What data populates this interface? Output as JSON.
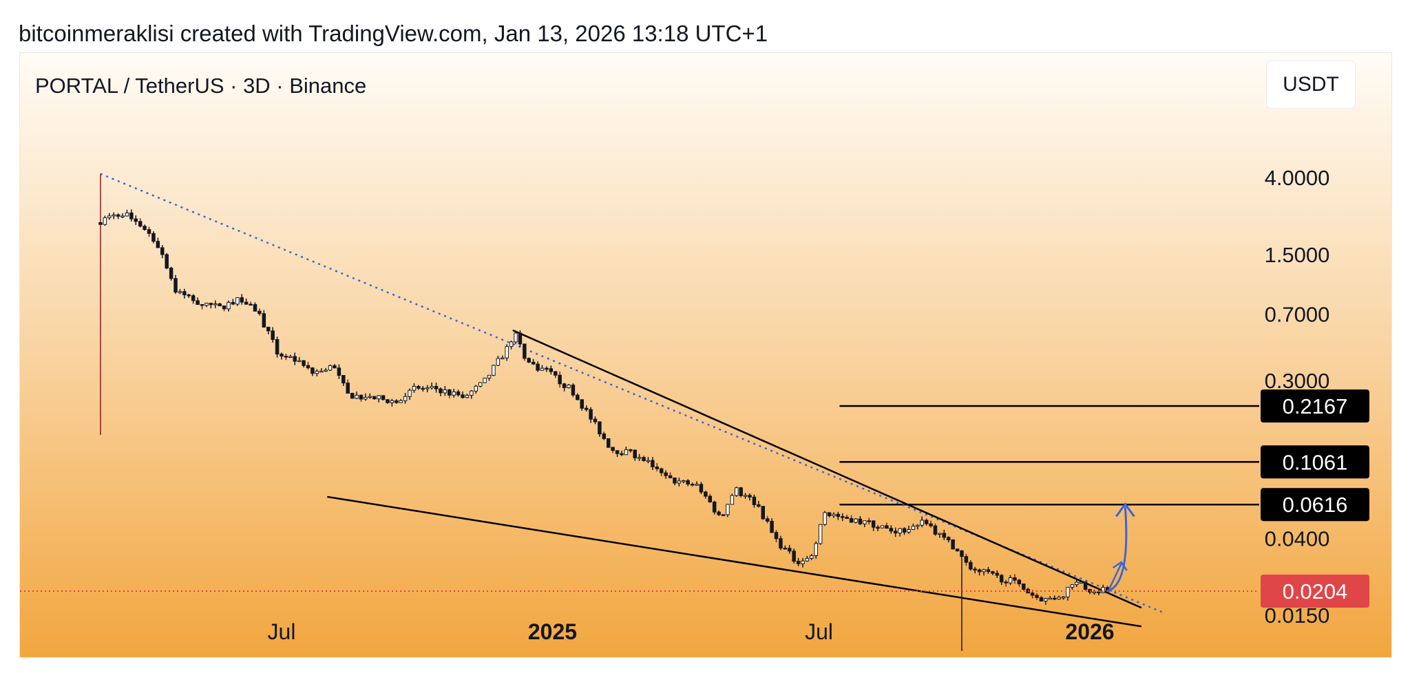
{
  "caption": "bitcoinmeraklisi created with TradingView.com, Jan 13, 2026 13:18 UTC+1",
  "header": {
    "symbol": "PORTAL / TetherUS · 3D · Binance",
    "currency": "USDT"
  },
  "colors": {
    "background_top": "#fffcf6",
    "background_bottom": "#f2a63f",
    "candle": "#131722",
    "bear_wick": "#8b1a1a",
    "dotted_trendline": "#3a64d8",
    "arrow": "#3a64d8",
    "current_price_line": "#e04040",
    "current_price_label": "#e04548",
    "level_label": "#000000"
  },
  "chart_data": {
    "type": "candlestick",
    "scale": "log",
    "ylim": [
      0.0085,
      5.0
    ],
    "x_tick_labels": [
      {
        "label": "Jul",
        "date": "2024-07-01",
        "bold": false
      },
      {
        "label": "2025",
        "date": "2025-01-01",
        "bold": true
      },
      {
        "label": "Jul",
        "date": "2025-07-01",
        "bold": false
      },
      {
        "label": "2026",
        "date": "2026-01-01",
        "bold": true
      }
    ],
    "y_tick_labels": [
      "4.0000",
      "1.5000",
      "0.7000",
      "0.3000",
      "0.0400",
      "0.0150"
    ],
    "price_levels": [
      {
        "value": "0.2167",
        "price": 0.2167,
        "from_date": "2025-07-15"
      },
      {
        "value": "0.1061",
        "price": 0.1061,
        "from_date": "2025-07-15"
      },
      {
        "value": "0.0616",
        "price": 0.0616,
        "from_date": "2025-07-15"
      }
    ],
    "current_price": {
      "value": "0.0204",
      "price": 0.0204
    },
    "price_series": {
      "interval": "3D",
      "points": [
        [
          "2024-02-29",
          2.3
        ],
        [
          "2024-03-15",
          2.55
        ],
        [
          "2024-03-30",
          2.1
        ],
        [
          "2024-04-10",
          1.6
        ],
        [
          "2024-04-20",
          0.95
        ],
        [
          "2024-05-05",
          0.82
        ],
        [
          "2024-05-20",
          0.76
        ],
        [
          "2024-06-05",
          0.86
        ],
        [
          "2024-06-15",
          0.72
        ],
        [
          "2024-06-28",
          0.43
        ],
        [
          "2024-07-10",
          0.39
        ],
        [
          "2024-07-22",
          0.33
        ],
        [
          "2024-08-05",
          0.36
        ],
        [
          "2024-08-15",
          0.25
        ],
        [
          "2024-09-01",
          0.24
        ],
        [
          "2024-09-15",
          0.23
        ],
        [
          "2024-09-30",
          0.27
        ],
        [
          "2024-10-15",
          0.27
        ],
        [
          "2024-11-01",
          0.24
        ],
        [
          "2024-11-15",
          0.29
        ],
        [
          "2024-12-01",
          0.45
        ],
        [
          "2024-12-06",
          0.55
        ],
        [
          "2024-12-15",
          0.38
        ],
        [
          "2024-12-30",
          0.33
        ],
        [
          "2025-01-15",
          0.26
        ],
        [
          "2025-01-30",
          0.17
        ],
        [
          "2025-02-10",
          0.125
        ],
        [
          "2025-03-01",
          0.115
        ],
        [
          "2025-03-20",
          0.085
        ],
        [
          "2025-04-10",
          0.078
        ],
        [
          "2025-04-25",
          0.052
        ],
        [
          "2025-05-05",
          0.075
        ],
        [
          "2025-05-20",
          0.062
        ],
        [
          "2025-06-01",
          0.04
        ],
        [
          "2025-06-15",
          0.03
        ],
        [
          "2025-06-25",
          0.031
        ],
        [
          "2025-07-05",
          0.055
        ],
        [
          "2025-07-20",
          0.052
        ],
        [
          "2025-08-05",
          0.048
        ],
        [
          "2025-08-20",
          0.044
        ],
        [
          "2025-09-01",
          0.045
        ],
        [
          "2025-09-10",
          0.052
        ],
        [
          "2025-09-20",
          0.042
        ],
        [
          "2025-10-01",
          0.036
        ],
        [
          "2025-10-10",
          0.028
        ],
        [
          "2025-10-25",
          0.025
        ],
        [
          "2025-11-10",
          0.023
        ],
        [
          "2025-11-25",
          0.019
        ],
        [
          "2025-12-05",
          0.018
        ],
        [
          "2025-12-15",
          0.02
        ],
        [
          "2025-12-20",
          0.023
        ],
        [
          "2026-01-01",
          0.021
        ],
        [
          "2026-01-13",
          0.0204
        ]
      ]
    },
    "drawings": {
      "dotted_trendline": [
        [
          "2024-02-29",
          4.2
        ],
        [
          "2026-02-20",
          0.0155
        ]
      ],
      "wedge_upper": [
        [
          "2024-12-05",
          0.57
        ],
        [
          "2026-02-05",
          0.0165
        ]
      ],
      "wedge_lower": [
        [
          "2024-08-01",
          0.068
        ],
        [
          "2026-02-05",
          0.013
        ]
      ],
      "arrow": {
        "from": [
          "2026-01-13",
          0.0204
        ],
        "to": [
          "2026-01-25",
          0.062
        ]
      }
    }
  }
}
